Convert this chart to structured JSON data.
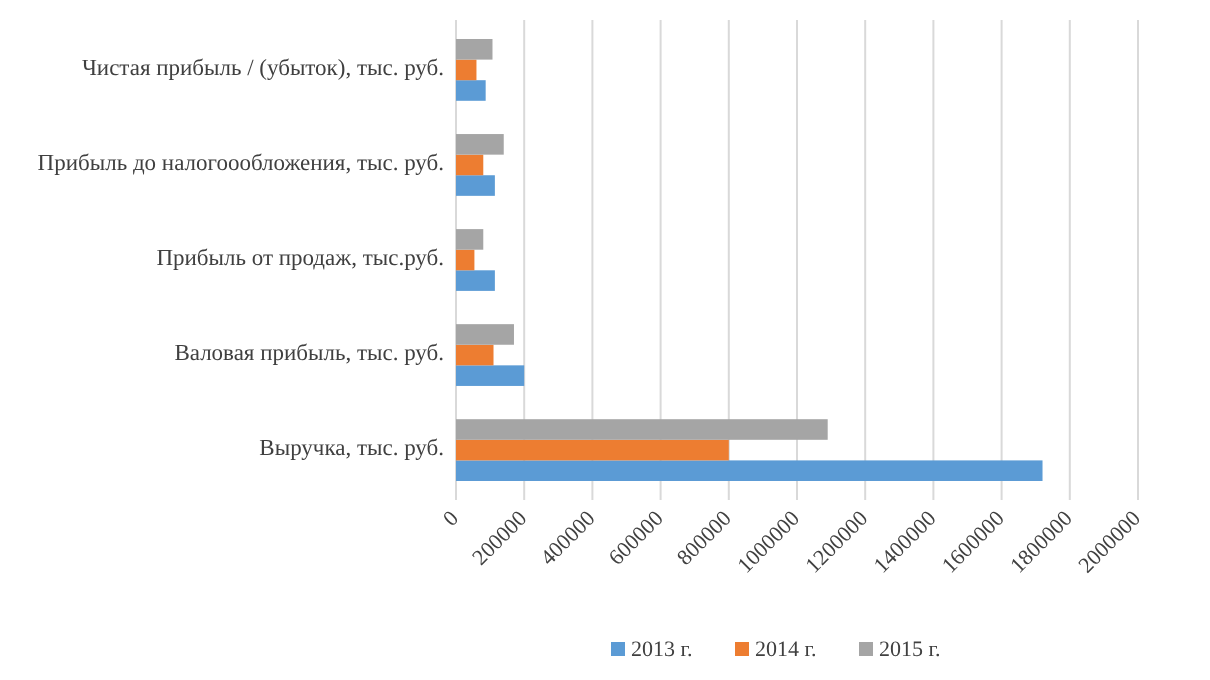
{
  "chart_data": {
    "type": "bar",
    "orientation": "horizontal",
    "categories": [
      "Чистая прибыль / (убыток), тыс. руб.",
      "Прибыль до налогоообложения, тыс. руб.",
      "Прибыль от продаж, тыс.руб.",
      "Валовая прибыль, тыс. руб.",
      "Выручка, тыс. руб."
    ],
    "series": [
      {
        "name": "2013 г.",
        "color": "#5b9bd5",
        "values": [
          87000,
          114000,
          114000,
          200000,
          1720000
        ]
      },
      {
        "name": "2014 г.",
        "color": "#ed7d31",
        "values": [
          60000,
          80000,
          54000,
          110000,
          800000
        ]
      },
      {
        "name": "2015 г.",
        "color": "#a5a5a5",
        "values": [
          107000,
          140000,
          80000,
          170000,
          1090000
        ]
      }
    ],
    "xlim": [
      0,
      2000000
    ],
    "xticks": [
      0,
      200000,
      400000,
      600000,
      800000,
      1000000,
      1200000,
      1400000,
      1600000,
      1800000,
      2000000
    ],
    "grid": "x",
    "legend": "bottom"
  }
}
